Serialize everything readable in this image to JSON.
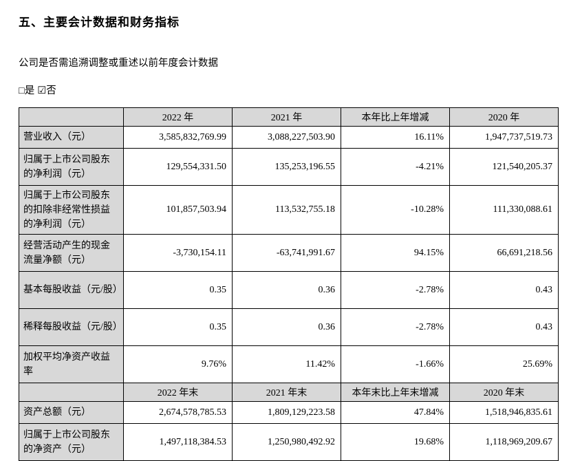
{
  "doc": {
    "title": "五、主要会计数据和财务指标",
    "question": "公司是否需追溯调整或重述以前年度会计数据",
    "option_yes": "□是",
    "option_no": "☑否"
  },
  "colors": {
    "header_gray": "#d8d8d8",
    "border": "#000000"
  },
  "table": {
    "header_annual": [
      "2022 年",
      "2021 年",
      "本年比上年增减",
      "2020 年"
    ],
    "rows_annual": [
      {
        "label": "营业收入（元）",
        "y2022": "3,585,832,769.99",
        "y2021": "3,088,227,503.90",
        "change": "16.11%",
        "y2020": "1,947,737,519.73"
      },
      {
        "label": "归属于上市公司股东的净利润（元）",
        "y2022": "129,554,331.50",
        "y2021": "135,253,196.55",
        "change": "-4.21%",
        "y2020": "121,540,205.37"
      },
      {
        "label": "归属于上市公司股东的扣除非经常性损益的净利润（元）",
        "y2022": "101,857,503.94",
        "y2021": "113,532,755.18",
        "change": "-10.28%",
        "y2020": "111,330,088.61"
      },
      {
        "label": "经营活动产生的现金流量净额（元）",
        "y2022": "-3,730,154.11",
        "y2021": "-63,741,991.67",
        "change": "94.15%",
        "y2020": "66,691,218.56"
      },
      {
        "label": "基本每股收益（元/股）",
        "y2022": "0.35",
        "y2021": "0.36",
        "change": "-2.78%",
        "y2020": "0.43"
      },
      {
        "label": "稀释每股收益（元/股）",
        "y2022": "0.35",
        "y2021": "0.36",
        "change": "-2.78%",
        "y2020": "0.43"
      },
      {
        "label": "加权平均净资产收益率",
        "y2022": "9.76%",
        "y2021": "11.42%",
        "change": "-1.66%",
        "y2020": "25.69%"
      }
    ],
    "header_eoy": [
      "2022 年末",
      "2021 年末",
      "本年末比上年末增减",
      "2020 年末"
    ],
    "rows_eoy": [
      {
        "label": "资产总额（元）",
        "y2022": "2,674,578,785.53",
        "y2021": "1,809,129,223.58",
        "change": "47.84%",
        "y2020": "1,518,946,835.61"
      },
      {
        "label": "归属于上市公司股东的净资产（元）",
        "y2022": "1,497,118,384.53",
        "y2021": "1,250,980,492.92",
        "change": "19.68%",
        "y2020": "1,118,969,209.67"
      }
    ]
  }
}
